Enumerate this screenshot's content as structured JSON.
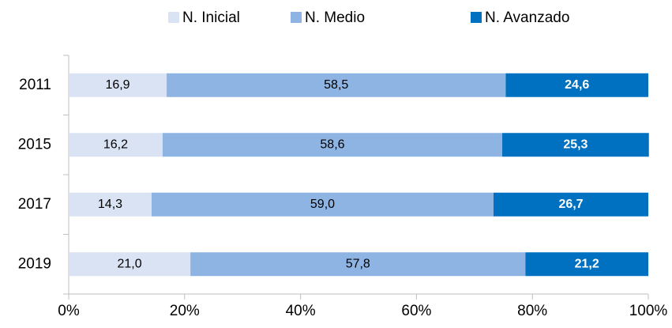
{
  "chart_data": {
    "type": "stacked_barh",
    "categories": [
      "2011",
      "2015",
      "2017",
      "2019"
    ],
    "series": [
      {
        "name": "N. Inicial",
        "color": "#dae3f3",
        "values": [
          16.9,
          16.2,
          14.3,
          21.0
        ],
        "value_labels": [
          "16,9",
          "16,2",
          "14,3",
          "21,0"
        ]
      },
      {
        "name": "N. Medio",
        "color": "#8eb4e3",
        "values": [
          58.5,
          58.6,
          59.0,
          57.8
        ],
        "value_labels": [
          "58,5",
          "58,6",
          "59,0",
          "57,8"
        ]
      },
      {
        "name": "N. Avanzado",
        "color": "#0070c0",
        "values": [
          24.6,
          25.3,
          26.7,
          21.2
        ],
        "value_labels": [
          "24,6",
          "25,3",
          "26,7",
          "21,2"
        ]
      }
    ],
    "xlim": [
      0,
      100
    ],
    "xticks": [
      {
        "value": 0,
        "label": "0%"
      },
      {
        "value": 20,
        "label": "20%"
      },
      {
        "value": 40,
        "label": "40%"
      },
      {
        "value": 60,
        "label": "60%"
      },
      {
        "value": 80,
        "label": "80%"
      },
      {
        "value": 100,
        "label": "100%"
      }
    ],
    "legend": "top"
  }
}
